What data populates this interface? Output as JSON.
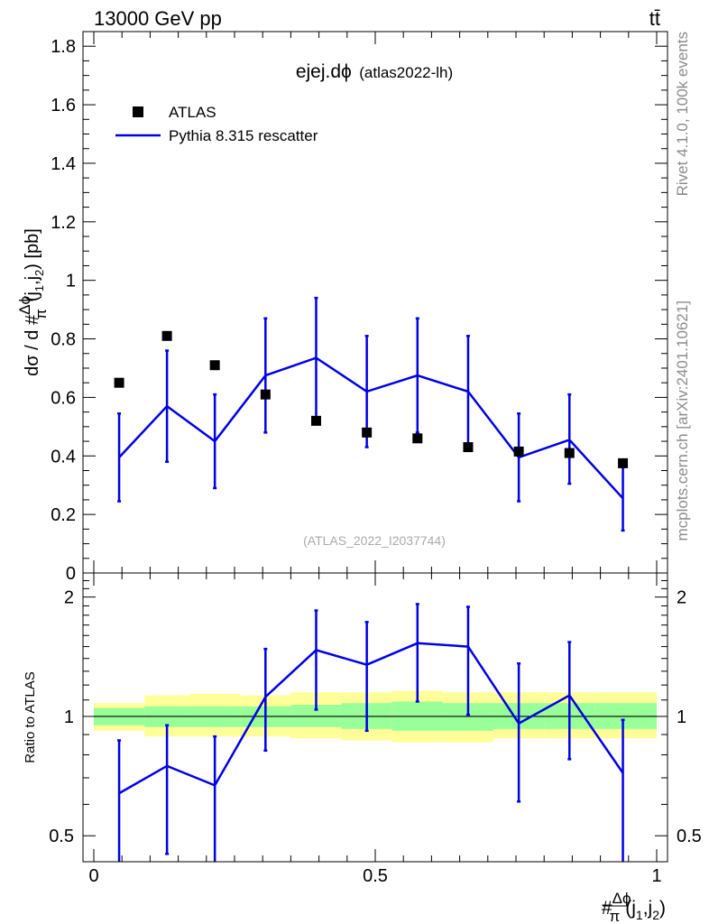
{
  "header": {
    "energy_label": "13000 GeV pp",
    "process_label": "tt̄"
  },
  "side_labels": {
    "rivet": "Rivet 4.1.0,  100k events",
    "site": "mcplots.cern.ch [arXiv:2401.10621]"
  },
  "colors": {
    "mc": "#0000e6",
    "data": "#000000",
    "band_inner": "#99ff99",
    "band_outer": "#ffff99"
  },
  "chart_data": [
    {
      "type": "scatter",
      "panel": "main",
      "title": "ejej.dϕ",
      "subtitle": "(atlas2022-lh)",
      "watermark": "(ATLAS_2022_I2037744)",
      "ylabel": "dσ / d #Δϕ/π(j1,j2) [pb]",
      "ylabel_parts": {
        "prefix": "dσ / d #",
        "num": "Δϕ",
        "den": "π",
        "args": "(j",
        "sub1": "1",
        "comma": ",j",
        "sub2": "2",
        "unit": ") [pb]"
      },
      "xlim": [
        0,
        1
      ],
      "ylim": [
        0,
        1.85
      ],
      "yticks": [
        0,
        0.2,
        0.4,
        0.6,
        0.8,
        1,
        1.2,
        1.4,
        1.6,
        1.8
      ],
      "ytick_labels": [
        "0",
        "0.2",
        "0.4",
        "0.6",
        "0.8",
        "1",
        "1.2",
        "1.4",
        "1.6",
        "1.8"
      ],
      "legend_position": "top-left",
      "legend": [
        {
          "label": "ATLAS",
          "style": "marker"
        },
        {
          "label": "Pythia 8.315 rescatter",
          "style": "line"
        }
      ],
      "series": [
        {
          "name": "ATLAS",
          "x": [
            0.045,
            0.13,
            0.215,
            0.305,
            0.395,
            0.485,
            0.575,
            0.665,
            0.755,
            0.845,
            0.94
          ],
          "values": [
            0.65,
            0.81,
            0.71,
            0.61,
            0.52,
            0.48,
            0.46,
            0.43,
            0.415,
            0.41,
            0.375
          ]
        },
        {
          "name": "Pythia 8.315 rescatter",
          "x": [
            0.045,
            0.13,
            0.215,
            0.305,
            0.395,
            0.485,
            0.575,
            0.665,
            0.755,
            0.845,
            0.94
          ],
          "values": [
            0.395,
            0.57,
            0.45,
            0.675,
            0.735,
            0.62,
            0.675,
            0.62,
            0.395,
            0.455,
            0.255
          ],
          "err_low": [
            0.15,
            0.19,
            0.16,
            0.195,
            0.205,
            0.19,
            0.195,
            0.19,
            0.15,
            0.15,
            0.11
          ],
          "err_high": [
            0.15,
            0.19,
            0.16,
            0.195,
            0.205,
            0.19,
            0.195,
            0.19,
            0.15,
            0.155,
            0.115
          ]
        }
      ]
    },
    {
      "type": "line",
      "panel": "ratio",
      "ylabel": "Ratio to ATLAS",
      "xlabel": "#Δϕ/π(j1,j2)",
      "xlabel_parts": {
        "prefix": "#",
        "num": "Δϕ",
        "den": "π",
        "args": "(j",
        "sub1": "1",
        "comma": ",j",
        "sub2": "2",
        "close": ")"
      },
      "xlim": [
        0,
        1
      ],
      "ylim": [
        0.43,
        2.3
      ],
      "yscale": "log",
      "yticks": [
        0.5,
        1,
        2
      ],
      "ytick_labels": [
        "0.5",
        "1",
        "2"
      ],
      "xticks": [
        0,
        0.5,
        1
      ],
      "xtick_labels": [
        "0",
        "0.5",
        "1"
      ],
      "reference_line": 1,
      "bands": {
        "edges": [
          0,
          0.09,
          0.17,
          0.26,
          0.35,
          0.44,
          0.53,
          0.62,
          0.71,
          0.8,
          0.89,
          1
        ],
        "inner_low": [
          0.95,
          0.94,
          0.94,
          0.94,
          0.94,
          0.93,
          0.92,
          0.92,
          0.93,
          0.93,
          0.93
        ],
        "inner_high": [
          1.05,
          1.06,
          1.06,
          1.06,
          1.07,
          1.08,
          1.09,
          1.08,
          1.08,
          1.08,
          1.08
        ],
        "outer_low": [
          0.92,
          0.89,
          0.89,
          0.89,
          0.88,
          0.87,
          0.86,
          0.86,
          0.88,
          0.88,
          0.88
        ],
        "outer_high": [
          1.08,
          1.13,
          1.14,
          1.13,
          1.15,
          1.15,
          1.16,
          1.15,
          1.15,
          1.15,
          1.15
        ]
      },
      "series": [
        {
          "name": "Pythia 8.315 rescatter / ATLAS",
          "x": [
            0.045,
            0.13,
            0.215,
            0.305,
            0.395,
            0.485,
            0.575,
            0.665,
            0.755,
            0.845,
            0.94
          ],
          "values": [
            0.64,
            0.75,
            0.67,
            1.12,
            1.47,
            1.35,
            1.53,
            1.5,
            0.96,
            1.13,
            0.72
          ],
          "err_low": [
            0.32,
            0.3,
            0.32,
            0.3,
            0.43,
            0.43,
            0.44,
            0.49,
            0.35,
            0.35,
            0.3
          ],
          "err_high": [
            0.23,
            0.2,
            0.22,
            0.36,
            0.38,
            0.38,
            0.39,
            0.39,
            0.4,
            0.41,
            0.26
          ]
        }
      ]
    }
  ]
}
